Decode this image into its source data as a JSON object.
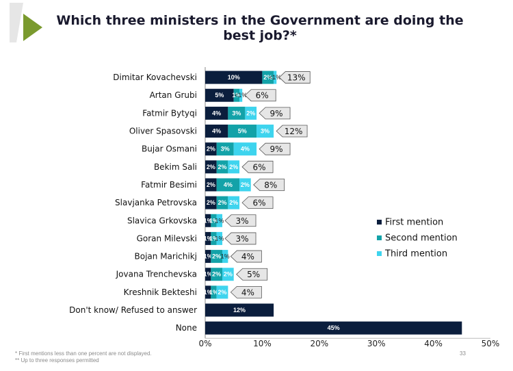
{
  "title": "Which three ministers in the Government are doing the best job?*",
  "footnotes": [
    "* First mentions less than one percent are not displayed.",
    "** Up to three responses permitted"
  ],
  "page_number": "33",
  "colors": {
    "first": "#0b1e3d",
    "second": "#13a2a8",
    "third": "#3ed4ee",
    "total_box": "#e6e6e6",
    "logo_green": "#7a9a2e",
    "logo_grey": "#e3e3e3"
  },
  "chart_data": {
    "type": "bar",
    "orientation": "horizontal",
    "stacked": true,
    "xlim": [
      0,
      50
    ],
    "x_ticks": [
      "0%",
      "10%",
      "20%",
      "30%",
      "40%",
      "50%"
    ],
    "legend_position": "right",
    "categories": [
      "Dimitar Kovachevski",
      "Artan Grubi",
      "Fatmir Bytyqi",
      "Oliver Spasovski",
      "Bujar Osmani",
      "Bekim Sali",
      "Fatmir Besimi",
      "Slavjanka Petrovska",
      "Slavica Grkovska",
      "Goran Milevski",
      "Bojan Marichikj",
      "Jovana Trenchevska",
      "Kreshnik Bekteshi",
      "Don't know/ Refused to answer",
      "None"
    ],
    "series": [
      {
        "name": "First mention",
        "values": [
          10,
          5,
          4,
          4,
          2,
          2,
          2,
          2,
          1,
          1,
          1,
          1,
          1,
          12,
          45
        ],
        "labels": [
          "10%",
          "5%",
          "4%",
          "4%",
          "2%",
          "2%",
          "2%",
          "2%",
          "1%",
          "1%",
          "1%",
          "1%",
          "1%",
          "12%",
          "45%"
        ]
      },
      {
        "name": "Second mention",
        "values": [
          2,
          1,
          3,
          5,
          3,
          2,
          4,
          2,
          1,
          1,
          2,
          2,
          1,
          0,
          0
        ],
        "labels": [
          "2%",
          "1%",
          "3%",
          "5%",
          "3%",
          "2%",
          "4%",
          "2%",
          "1%",
          "1%",
          "2%",
          "2%",
          "1%",
          "",
          ""
        ]
      },
      {
        "name": "Third mention",
        "values": [
          0.5,
          0.5,
          2,
          3,
          4,
          2,
          2,
          2,
          1,
          1,
          1,
          2,
          2,
          0,
          0
        ],
        "labels": [
          "<1%",
          "<1%",
          "2%",
          "3%",
          "4%",
          "2%",
          "2%",
          "2%",
          "1%",
          "1%",
          "1%",
          "2%",
          "2%",
          "",
          ""
        ]
      }
    ],
    "totals": [
      "13%",
      "6%",
      "9%",
      "12%",
      "9%",
      "6%",
      "8%",
      "6%",
      "3%",
      "3%",
      "4%",
      "5%",
      "4%",
      "",
      ""
    ]
  }
}
